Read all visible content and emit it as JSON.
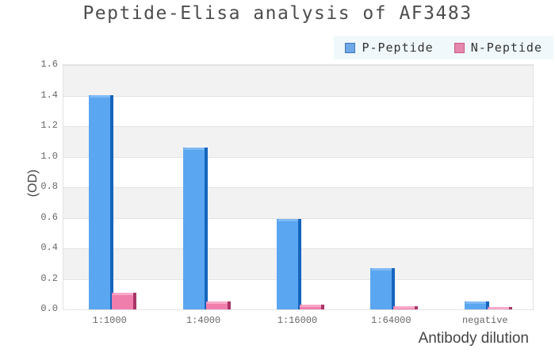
{
  "chart_data": {
    "type": "bar",
    "title": "Peptide-Elisa analysis of AF3483",
    "xlabel": "Antibody dilution",
    "ylabel": "(OD)",
    "categories": [
      "1:1000",
      "1:4000",
      "1:16000",
      "1:64000",
      "negative"
    ],
    "series": [
      {
        "name": "P-Peptide",
        "values": [
          1.4,
          1.06,
          0.59,
          0.27,
          0.05
        ],
        "color": "#5BA6F0",
        "edge": "#1565BE",
        "top": "#7FBAF6",
        "swatch": "#6FA8E6",
        "swatch_border": "#3E74B8"
      },
      {
        "name": "N-Peptide",
        "values": [
          0.11,
          0.05,
          0.03,
          0.02,
          0.015
        ],
        "color": "#F07EAC",
        "edge": "#A93568",
        "top": "#F8A9C9",
        "swatch": "#E687AC",
        "swatch_border": "#C75D88"
      }
    ],
    "ylim": [
      0,
      1.6
    ],
    "ytick_step": 0.2,
    "yticks": [
      "0.0",
      "0.2",
      "0.4",
      "0.6",
      "0.8",
      "1.0",
      "1.2",
      "1.4",
      "1.6"
    ],
    "grid": true,
    "legend_position": "top-right",
    "band_color": "#F2F2F2",
    "band_alt_color": "#FFFFFF",
    "legend_bg": "#F0F8FB",
    "title_color": "#4D4D4D",
    "tick_color": "#666666"
  }
}
